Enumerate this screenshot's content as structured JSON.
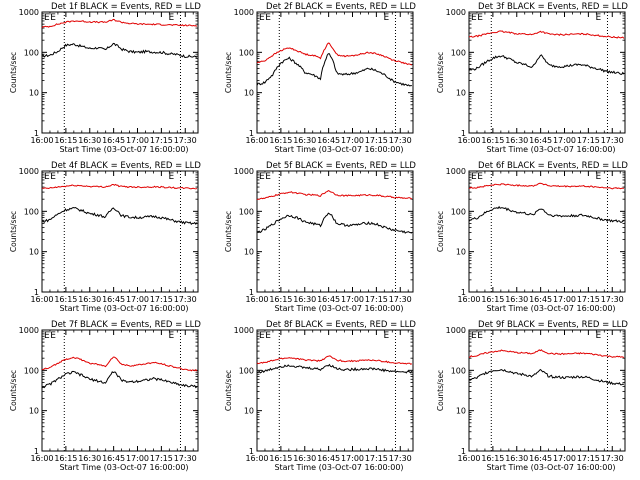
{
  "figure": {
    "start_time_label": "Start Time (03-Oct-07 16:00:00)",
    "y_label": "Counts/sec",
    "x_tick_labels": [
      "16:00",
      "16:15",
      "16:30",
      "16:45",
      "17:00",
      "17:15",
      "17:30"
    ],
    "y_tick_labels": [
      "1",
      "10",
      "100",
      "1000"
    ],
    "marker_letter": "E",
    "colors": {
      "events": "#000000",
      "lld": "#e00000",
      "axes": "#000000"
    }
  },
  "chart_data": [
    {
      "type": "line",
      "title": "Det 1f BLACK = Events, RED = LLD",
      "xlabel": "Start Time (03-Oct-07 16:00:00)",
      "ylabel": "Counts/sec",
      "yscale": "log",
      "ylim": [
        1,
        1000
      ],
      "xlim_minutes": [
        0,
        98
      ],
      "event_lines_minutes": [
        14,
        87
      ],
      "event_markers": [
        "E",
        "E"
      ],
      "series": [
        {
          "x": [
            0,
            5,
            10,
            15,
            20,
            25,
            30,
            35,
            40,
            45,
            50,
            55,
            60,
            65,
            70,
            75,
            80,
            85,
            90,
            95,
            98
          ],
          "values": [
            80,
            85,
            105,
            150,
            160,
            140,
            125,
            130,
            115,
            165,
            120,
            105,
            100,
            105,
            102,
            100,
            92,
            88,
            80,
            78,
            76
          ]
        },
        {
          "x": [
            0,
            5,
            10,
            15,
            20,
            25,
            30,
            35,
            40,
            45,
            50,
            55,
            60,
            65,
            70,
            75,
            80,
            85,
            90,
            95,
            98
          ],
          "values": [
            420,
            440,
            500,
            560,
            600,
            590,
            570,
            560,
            560,
            640,
            560,
            520,
            505,
            500,
            495,
            490,
            480,
            470,
            465,
            460,
            460
          ]
        }
      ]
    },
    {
      "type": "line",
      "title": "Det 2f BLACK = Events, RED = LLD",
      "xlabel": "Start Time (03-Oct-07 16:00:00)",
      "ylabel": "Counts/sec",
      "yscale": "log",
      "ylim": [
        1,
        1000
      ],
      "xlim_minutes": [
        0,
        98
      ],
      "event_lines_minutes": [
        14,
        87
      ],
      "event_markers": [
        "E",
        "E"
      ],
      "series": [
        {
          "x": [
            0,
            5,
            10,
            15,
            20,
            25,
            30,
            35,
            40,
            45,
            50,
            55,
            60,
            65,
            70,
            75,
            80,
            85,
            90,
            95,
            98
          ],
          "values": [
            16,
            18,
            28,
            55,
            72,
            52,
            32,
            28,
            22,
            95,
            30,
            28,
            30,
            33,
            40,
            35,
            28,
            20,
            17,
            15,
            14
          ]
        },
        {
          "x": [
            0,
            5,
            10,
            15,
            20,
            25,
            30,
            35,
            40,
            45,
            50,
            55,
            60,
            65,
            70,
            75,
            80,
            85,
            90,
            95,
            98
          ],
          "values": [
            55,
            62,
            85,
            110,
            130,
            110,
            90,
            85,
            72,
            170,
            88,
            80,
            82,
            90,
            100,
            92,
            80,
            65,
            58,
            50,
            48
          ]
        }
      ]
    },
    {
      "type": "line",
      "title": "Det 3f BLACK = Events, RED = LLD",
      "xlabel": "Start Time (03-Oct-07 16:00:00)",
      "ylabel": "Counts/sec",
      "yscale": "log",
      "ylim": [
        1,
        1000
      ],
      "xlim_minutes": [
        0,
        98
      ],
      "event_lines_minutes": [
        14,
        87
      ],
      "event_markers": [
        "E",
        "E"
      ],
      "series": [
        {
          "x": [
            0,
            5,
            10,
            15,
            20,
            25,
            30,
            35,
            40,
            45,
            50,
            55,
            60,
            65,
            70,
            75,
            80,
            85,
            90,
            95,
            98
          ],
          "values": [
            36,
            40,
            55,
            72,
            82,
            70,
            55,
            50,
            42,
            85,
            48,
            45,
            45,
            48,
            50,
            45,
            40,
            35,
            32,
            30,
            29
          ]
        },
        {
          "x": [
            0,
            5,
            10,
            15,
            20,
            25,
            30,
            35,
            40,
            45,
            50,
            55,
            60,
            65,
            70,
            75,
            80,
            85,
            90,
            95,
            98
          ],
          "values": [
            240,
            250,
            280,
            310,
            330,
            310,
            290,
            285,
            275,
            330,
            285,
            275,
            275,
            280,
            285,
            280,
            265,
            250,
            240,
            232,
            230
          ]
        }
      ]
    },
    {
      "type": "line",
      "title": "Det 4f BLACK = Events, RED = LLD",
      "xlabel": "Start Time (03-Oct-07 16:00:00)",
      "ylabel": "Counts/sec",
      "yscale": "log",
      "ylim": [
        1,
        1000
      ],
      "xlim_minutes": [
        0,
        98
      ],
      "event_lines_minutes": [
        14,
        87
      ],
      "event_markers": [
        "E",
        "E"
      ],
      "series": [
        {
          "x": [
            0,
            5,
            10,
            15,
            20,
            25,
            30,
            35,
            40,
            45,
            50,
            55,
            60,
            65,
            70,
            75,
            80,
            85,
            90,
            95,
            98
          ],
          "values": [
            55,
            62,
            85,
            110,
            120,
            105,
            88,
            82,
            72,
            125,
            78,
            72,
            70,
            72,
            75,
            70,
            62,
            56,
            52,
            50,
            50
          ]
        },
        {
          "x": [
            0,
            5,
            10,
            15,
            20,
            25,
            30,
            35,
            40,
            45,
            50,
            55,
            60,
            65,
            70,
            75,
            80,
            85,
            90,
            95,
            98
          ],
          "values": [
            370,
            375,
            400,
            420,
            440,
            430,
            415,
            410,
            405,
            460,
            410,
            405,
            400,
            400,
            405,
            400,
            390,
            380,
            375,
            370,
            370
          ]
        }
      ]
    },
    {
      "type": "line",
      "title": "Det 5f BLACK = Events, RED = LLD",
      "xlabel": "Start Time (03-Oct-07 16:00:00)",
      "ylabel": "Counts/sec",
      "yscale": "log",
      "ylim": [
        1,
        1000
      ],
      "xlim_minutes": [
        0,
        98
      ],
      "event_lines_minutes": [
        14,
        87
      ],
      "event_markers": [
        "E",
        "E"
      ],
      "series": [
        {
          "x": [
            0,
            5,
            10,
            15,
            20,
            25,
            30,
            35,
            40,
            45,
            50,
            55,
            60,
            65,
            70,
            75,
            80,
            85,
            90,
            95,
            98
          ],
          "values": [
            30,
            35,
            48,
            65,
            80,
            70,
            55,
            50,
            44,
            95,
            50,
            46,
            45,
            48,
            52,
            48,
            40,
            35,
            32,
            30,
            29
          ]
        },
        {
          "x": [
            0,
            5,
            10,
            15,
            20,
            25,
            30,
            35,
            40,
            45,
            50,
            55,
            60,
            65,
            70,
            75,
            80,
            85,
            90,
            95,
            98
          ],
          "values": [
            200,
            210,
            240,
            270,
            300,
            285,
            260,
            255,
            245,
            330,
            255,
            245,
            245,
            250,
            255,
            250,
            235,
            225,
            215,
            210,
            210
          ]
        }
      ]
    },
    {
      "type": "line",
      "title": "Det 6f BLACK = Events, RED = LLD",
      "xlabel": "Start Time (03-Oct-07 16:00:00)",
      "ylabel": "Counts/sec",
      "yscale": "log",
      "ylim": [
        1,
        1000
      ],
      "xlim_minutes": [
        0,
        98
      ],
      "event_lines_minutes": [
        14,
        87
      ],
      "event_markers": [
        "E",
        "E"
      ],
      "series": [
        {
          "x": [
            0,
            5,
            10,
            15,
            20,
            25,
            30,
            35,
            40,
            45,
            50,
            55,
            60,
            65,
            70,
            75,
            80,
            85,
            90,
            95,
            98
          ],
          "values": [
            60,
            68,
            90,
            115,
            125,
            110,
            95,
            90,
            80,
            120,
            82,
            78,
            76,
            78,
            80,
            76,
            68,
            62,
            58,
            56,
            55
          ]
        },
        {
          "x": [
            0,
            5,
            10,
            15,
            20,
            25,
            30,
            35,
            40,
            45,
            50,
            55,
            60,
            65,
            70,
            75,
            80,
            85,
            90,
            95,
            98
          ],
          "values": [
            380,
            390,
            420,
            450,
            470,
            455,
            440,
            435,
            425,
            500,
            430,
            420,
            415,
            415,
            420,
            415,
            400,
            385,
            375,
            370,
            370
          ]
        }
      ]
    },
    {
      "type": "line",
      "title": "Det 7f BLACK = Events, RED = LLD",
      "xlabel": "Start Time (03-Oct-07 16:00:00)",
      "ylabel": "Counts/sec",
      "yscale": "log",
      "ylim": [
        1,
        1000
      ],
      "xlim_minutes": [
        0,
        98
      ],
      "event_lines_minutes": [
        14,
        87
      ],
      "event_markers": [
        "E",
        "E"
      ],
      "series": [
        {
          "x": [
            0,
            5,
            10,
            15,
            20,
            25,
            30,
            35,
            40,
            45,
            50,
            55,
            60,
            65,
            70,
            75,
            80,
            85,
            90,
            95,
            98
          ],
          "values": [
            38,
            45,
            60,
            80,
            90,
            75,
            60,
            55,
            48,
            95,
            55,
            52,
            54,
            58,
            62,
            58,
            52,
            46,
            42,
            40,
            40
          ]
        },
        {
          "x": [
            0,
            5,
            10,
            15,
            20,
            25,
            30,
            35,
            40,
            45,
            50,
            55,
            60,
            65,
            70,
            75,
            80,
            85,
            90,
            95,
            98
          ],
          "values": [
            105,
            115,
            150,
            190,
            210,
            180,
            150,
            140,
            125,
            220,
            140,
            130,
            135,
            145,
            155,
            145,
            130,
            115,
            105,
            100,
            100
          ]
        }
      ]
    },
    {
      "type": "line",
      "title": "Det 8f BLACK = Events, RED = LLD",
      "xlabel": "Start Time (03-Oct-07 16:00:00)",
      "ylabel": "Counts/sec",
      "yscale": "log",
      "ylim": [
        1,
        1000
      ],
      "xlim_minutes": [
        0,
        98
      ],
      "event_lines_minutes": [
        14,
        87
      ],
      "event_markers": [
        "E",
        "E"
      ],
      "series": [
        {
          "x": [
            0,
            5,
            10,
            15,
            20,
            25,
            30,
            35,
            40,
            45,
            50,
            55,
            60,
            65,
            70,
            75,
            80,
            85,
            90,
            95,
            98
          ],
          "values": [
            90,
            95,
            110,
            125,
            135,
            125,
            115,
            112,
            105,
            140,
            110,
            105,
            105,
            108,
            110,
            108,
            100,
            95,
            92,
            90,
            90
          ]
        },
        {
          "x": [
            0,
            5,
            10,
            15,
            20,
            25,
            30,
            35,
            40,
            45,
            50,
            55,
            60,
            65,
            70,
            75,
            80,
            85,
            90,
            95,
            98
          ],
          "values": [
            150,
            155,
            175,
            195,
            205,
            195,
            180,
            178,
            170,
            230,
            178,
            170,
            170,
            175,
            180,
            175,
            165,
            155,
            150,
            145,
            145
          ]
        }
      ]
    },
    {
      "type": "line",
      "title": "Det 9f BLACK = Events, RED = LLD",
      "xlabel": "Start Time (03-Oct-07 16:00:00)",
      "ylabel": "Counts/sec",
      "yscale": "log",
      "ylim": [
        1,
        1000
      ],
      "xlim_minutes": [
        0,
        98
      ],
      "event_lines_minutes": [
        14,
        87
      ],
      "event_markers": [
        "E",
        "E"
      ],
      "series": [
        {
          "x": [
            0,
            5,
            10,
            15,
            20,
            25,
            30,
            35,
            40,
            45,
            50,
            55,
            60,
            65,
            70,
            75,
            80,
            85,
            90,
            95,
            98
          ],
          "values": [
            58,
            65,
            85,
            100,
            105,
            95,
            82,
            78,
            70,
            100,
            72,
            68,
            66,
            68,
            70,
            66,
            58,
            52,
            48,
            46,
            45
          ]
        },
        {
          "x": [
            0,
            5,
            10,
            15,
            20,
            25,
            30,
            35,
            40,
            45,
            50,
            55,
            60,
            65,
            70,
            75,
            80,
            85,
            90,
            95,
            98
          ],
          "values": [
            220,
            230,
            265,
            290,
            310,
            295,
            275,
            270,
            260,
            320,
            265,
            255,
            255,
            260,
            265,
            260,
            245,
            230,
            220,
            215,
            215
          ]
        }
      ]
    }
  ]
}
